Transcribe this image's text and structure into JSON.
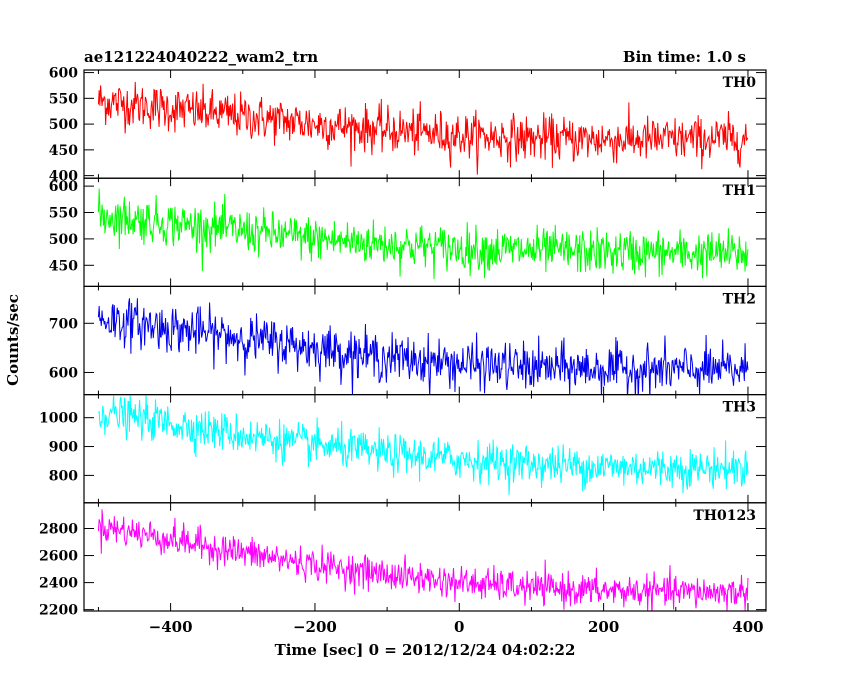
{
  "header": {
    "title": "ae121224040222_wam2_trn",
    "bin_time": "Bin time: 1.0 s"
  },
  "chart_data": {
    "type": "line",
    "title": "ae121224040222_wam2_trn",
    "xlabel": "Time [sec] 0 = 2012/12/24 04:02:22",
    "ylabel": "Counts/sec",
    "xlim": [
      -520,
      425
    ],
    "x_ticks": [
      -400,
      -200,
      0,
      200,
      400
    ],
    "x_tick_labels": [
      "−400",
      "−200",
      "0",
      "200",
      "400"
    ],
    "x_range": [
      -500,
      400
    ],
    "bin_time_s": 1.0,
    "grid": false,
    "panels": [
      {
        "name": "TH0",
        "color": "#ff0000",
        "ylim": [
          395,
          605
        ],
        "yticks": [
          400,
          450,
          500,
          550,
          600
        ],
        "ytick_labels": [
          "400",
          "450",
          "500",
          "550",
          "600"
        ],
        "trend_x": [
          -500,
          -400,
          -300,
          -200,
          -100,
          0,
          100,
          200,
          300,
          400
        ],
        "trend_y": [
          545,
          530,
          515,
          500,
          488,
          478,
          472,
          470,
          470,
          472
        ],
        "noise": 22
      },
      {
        "name": "TH1",
        "color": "#00ff00",
        "ylim": [
          410,
          615
        ],
        "yticks": [
          450,
          500,
          550,
          600
        ],
        "ytick_labels": [
          "450",
          "500",
          "550",
          "600"
        ],
        "trend_x": [
          -500,
          -400,
          -300,
          -200,
          -100,
          0,
          100,
          200,
          300,
          400
        ],
        "trend_y": [
          545,
          530,
          515,
          500,
          490,
          482,
          478,
          475,
          473,
          472
        ],
        "noise": 21
      },
      {
        "name": "TH2",
        "color": "#0000ee",
        "ylim": [
          555,
          775
        ],
        "yticks": [
          600,
          700
        ],
        "ytick_labels": [
          "600",
          "700"
        ],
        "trend_x": [
          -500,
          -400,
          -300,
          -200,
          -100,
          0,
          100,
          200,
          300,
          400
        ],
        "trend_y": [
          710,
          690,
          670,
          650,
          630,
          617,
          610,
          607,
          605,
          605
        ],
        "noise": 24
      },
      {
        "name": "TH3",
        "color": "#00ffff",
        "ylim": [
          705,
          1080
        ],
        "yticks": [
          800,
          900,
          1000
        ],
        "ytick_labels": [
          "800",
          "900",
          "1000"
        ],
        "trend_x": [
          -500,
          -400,
          -300,
          -200,
          -100,
          0,
          100,
          200,
          300,
          400
        ],
        "trend_y": [
          1020,
          980,
          940,
          905,
          875,
          855,
          840,
          830,
          825,
          825
        ],
        "noise": 34
      },
      {
        "name": "TH0123",
        "color": "#ff00ff",
        "ylim": [
          2190,
          2990
        ],
        "yticks": [
          2200,
          2400,
          2600,
          2800
        ],
        "ytick_labels": [
          "2200",
          "2400",
          "2600",
          "2800"
        ],
        "trend_x": [
          -500,
          -400,
          -300,
          -200,
          -100,
          0,
          100,
          200,
          300,
          400
        ],
        "trend_y": [
          2820,
          2720,
          2620,
          2530,
          2460,
          2400,
          2360,
          2340,
          2330,
          2330
        ],
        "noise": 60
      }
    ]
  }
}
